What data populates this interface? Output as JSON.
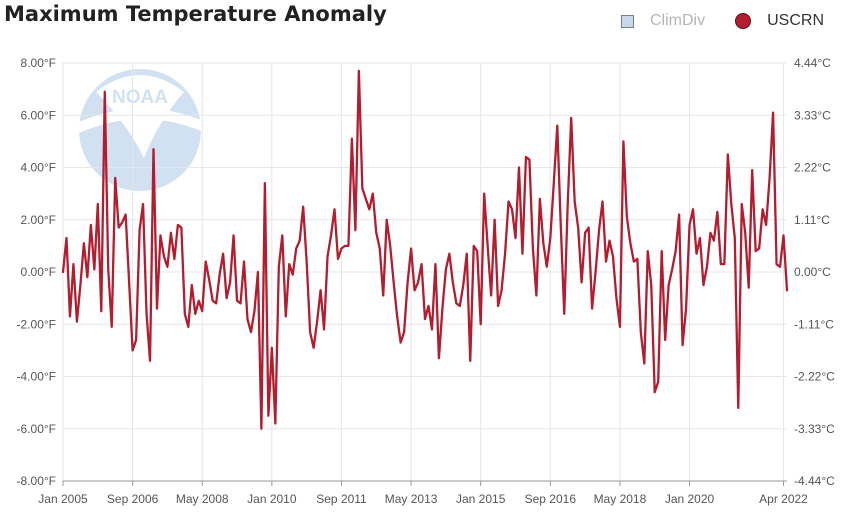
{
  "chart_data": {
    "type": "line",
    "title": "Maximum Temperature Anomaly",
    "legend": [
      {
        "name": "ClimDiv",
        "color": "#c9d7e8",
        "marker": "square",
        "visible": false
      },
      {
        "name": "USCRN",
        "color": "#b21d2f",
        "marker": "circle",
        "visible": true
      }
    ],
    "legend_position": "top-right",
    "x_start": "Jan 2005",
    "x_end": "Jun 2022",
    "xtick_labels": [
      "Jan 2005",
      "Sep 2006",
      "May 2008",
      "Jan 2010",
      "Sep 2011",
      "May 2013",
      "Jan 2015",
      "Sep 2016",
      "May 2018",
      "Jan 2020",
      "Apr 2022"
    ],
    "xtick_month_index": [
      0,
      20,
      40,
      60,
      80,
      100,
      120,
      140,
      160,
      180,
      207
    ],
    "ylim_f": [
      -8,
      8
    ],
    "ytick_values_f": [
      8,
      6,
      4,
      2,
      0,
      -2,
      -4,
      -6,
      -8
    ],
    "ytick_labels_left": [
      "8.00°F",
      "6.00°F",
      "4.00°F",
      "2.00°F",
      "0.00°F",
      "-2.00°F",
      "-4.00°F",
      "-6.00°F",
      "-8.00°F"
    ],
    "ytick_labels_right": [
      "4.44°C",
      "3.33°C",
      "2.22°C",
      "1.11°C",
      "0.00°C",
      "-1.11°C",
      "-2.22°C",
      "-3.33°C",
      "-4.44°C"
    ],
    "vertical_gridlines": true,
    "series": [
      {
        "name": "USCRN",
        "unit": "°F",
        "values": [
          0.0,
          1.3,
          -1.7,
          0.3,
          -1.9,
          -0.5,
          1.1,
          -0.2,
          1.8,
          0.1,
          2.6,
          -1.5,
          6.9,
          0.1,
          -2.1,
          3.6,
          1.7,
          1.9,
          2.2,
          -0.4,
          -3.0,
          -2.6,
          1.6,
          2.6,
          -1.6,
          -3.4,
          4.7,
          -1.4,
          1.4,
          0.6,
          0.2,
          1.5,
          0.5,
          1.8,
          1.7,
          -1.6,
          -2.1,
          -0.5,
          -1.6,
          -1.1,
          -1.5,
          0.4,
          -0.3,
          -1.1,
          -1.2,
          -0.1,
          0.7,
          -1.0,
          -0.4,
          1.4,
          -1.1,
          -1.2,
          0.4,
          -1.8,
          -2.3,
          -1.5,
          0.0,
          -6.0,
          3.4,
          -5.5,
          -2.9,
          -5.8,
          0.2,
          1.4,
          -1.7,
          0.3,
          -0.1,
          0.9,
          1.2,
          2.5,
          0.4,
          -2.3,
          -2.9,
          -1.9,
          -0.7,
          -2.2,
          0.6,
          1.4,
          2.4,
          0.5,
          0.9,
          1.0,
          1.0,
          5.1,
          1.6,
          7.7,
          3.2,
          2.8,
          2.4,
          3.0,
          1.5,
          0.9,
          -0.9,
          2.0,
          1.0,
          -0.4,
          -1.7,
          -2.7,
          -2.3,
          -0.4,
          0.9,
          -0.7,
          -0.4,
          0.3,
          -1.8,
          -1.3,
          -2.2,
          0.3,
          -3.3,
          -1.4,
          0.1,
          0.7,
          -0.4,
          -1.2,
          -1.3,
          -0.5,
          0.7,
          -3.4,
          1.0,
          0.8,
          -2.0,
          3.0,
          1.0,
          -0.9,
          2.0,
          -1.3,
          -0.7,
          0.7,
          2.7,
          2.4,
          1.3,
          4.0,
          0.7,
          4.4,
          4.3,
          0.9,
          -0.9,
          2.8,
          1.1,
          0.2,
          1.3,
          3.4,
          5.6,
          1.8,
          -1.6,
          2.6,
          5.9,
          2.7,
          1.7,
          -0.4,
          1.5,
          1.7,
          -1.4,
          0.0,
          1.6,
          2.7,
          0.4,
          1.2,
          0.6,
          -1.0,
          -2.1,
          5.0,
          2.1,
          1.1,
          0.4,
          0.5,
          -2.3,
          -3.5,
          0.8,
          -0.5,
          -4.6,
          -4.2,
          0.8,
          -2.6,
          -0.5,
          0.1,
          0.8,
          2.2,
          -2.8,
          -1.4,
          1.8,
          2.4,
          0.7,
          1.3,
          -0.5,
          0.2,
          1.5,
          1.2,
          2.3,
          0.3,
          0.3,
          4.5,
          2.6,
          1.3,
          -5.2,
          2.6,
          1.5,
          -0.6,
          3.9,
          0.8,
          0.9,
          2.4,
          1.8,
          3.6,
          6.1,
          0.3,
          0.2,
          1.4,
          -0.7
        ]
      }
    ]
  }
}
